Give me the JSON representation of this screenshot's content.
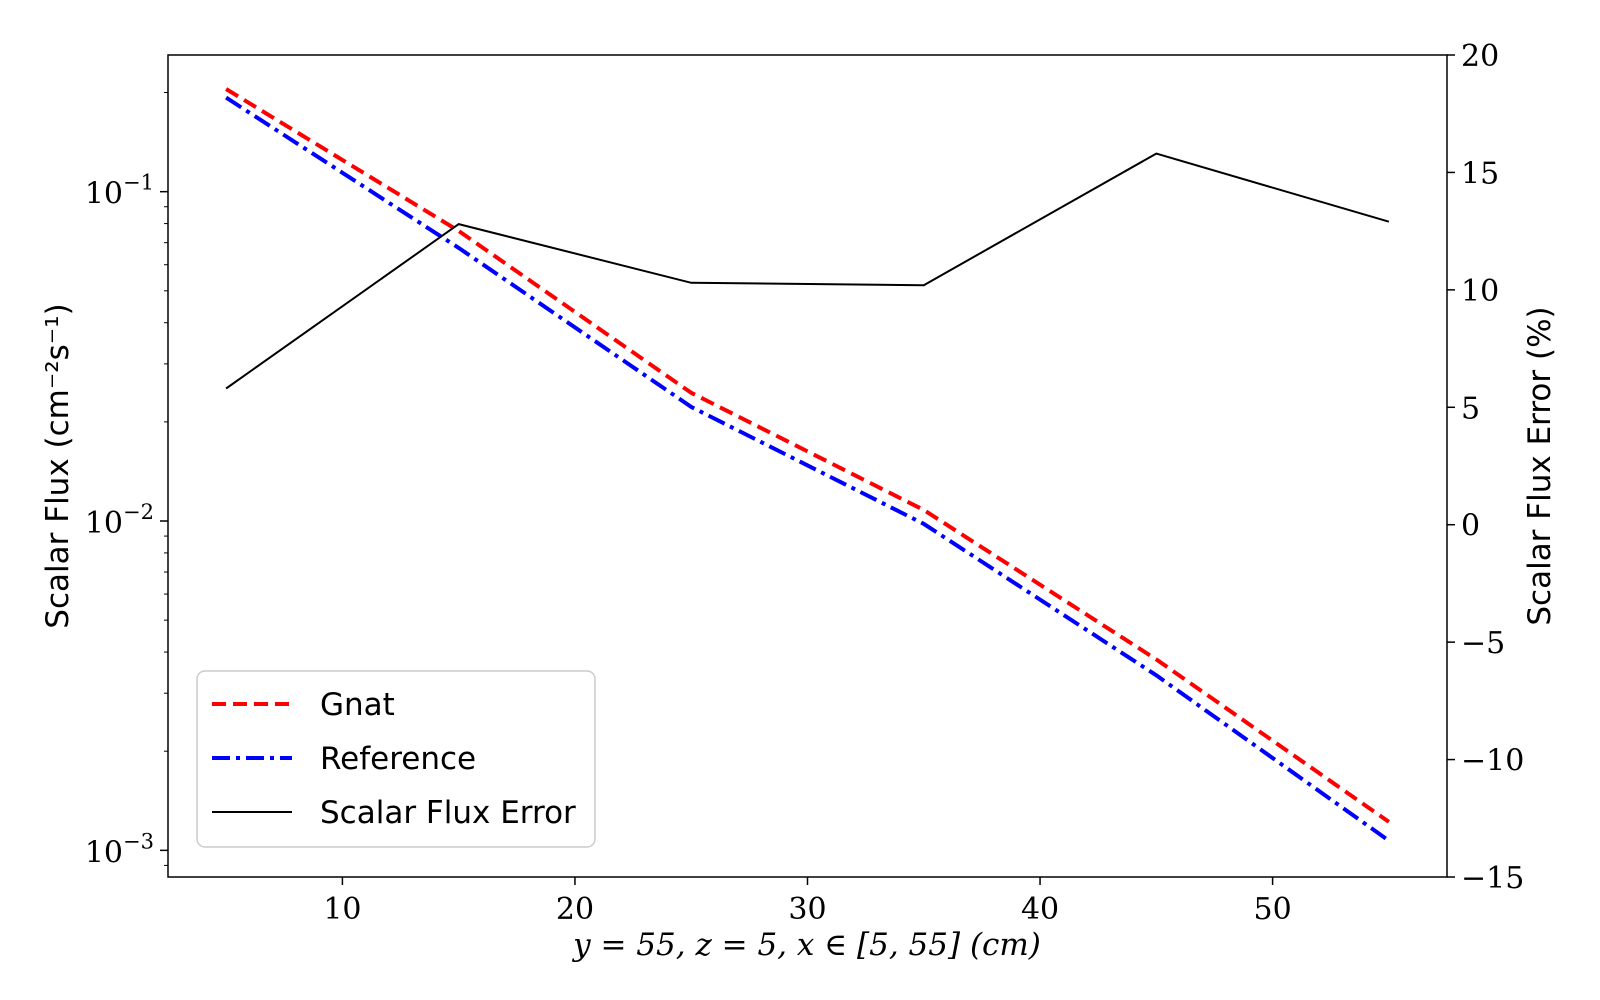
{
  "chart_data": {
    "type": "line",
    "title": "",
    "xlabel": "y = 55, z = 5, x ∈ [5, 55] (cm)",
    "ylabel_left": "Scalar Flux (cm⁻²s⁻¹)",
    "ylabel_right": "Scalar Flux Error (%)",
    "xlim": [
      2.5,
      57.5
    ],
    "ylim_left": [
      0.00083,
      0.26
    ],
    "ylim_right": [
      -15,
      20
    ],
    "yscale_left": "log",
    "yscale_right": "linear",
    "x_ticks": [
      10,
      20,
      30,
      40,
      50
    ],
    "y_left_ticks": [
      {
        "value": 0.1,
        "base": "10",
        "exp": "−1"
      },
      {
        "value": 0.01,
        "base": "10",
        "exp": "−2"
      },
      {
        "value": 0.001,
        "base": "10",
        "exp": "−3"
      }
    ],
    "y_right_ticks": [
      20,
      15,
      10,
      5,
      0,
      -5,
      -10,
      -15
    ],
    "x": [
      5,
      15,
      25,
      35,
      45,
      55
    ],
    "series": [
      {
        "name": "Gnat",
        "axis": "left",
        "color": "#ff0000",
        "style": "dashed",
        "values": [
          0.205,
          0.076,
          0.0245,
          0.0108,
          0.0038,
          0.00122
        ]
      },
      {
        "name": "Reference",
        "axis": "left",
        "color": "#0000ff",
        "style": "dashdot",
        "values": [
          0.193,
          0.0675,
          0.0222,
          0.0098,
          0.0034,
          0.00107
        ]
      },
      {
        "name": "Scalar Flux Error",
        "axis": "right",
        "color": "#000000",
        "style": "solid",
        "values": [
          5.8,
          12.8,
          10.3,
          10.2,
          15.8,
          12.9
        ]
      }
    ],
    "grid": false,
    "legend_position": "lower-left"
  }
}
